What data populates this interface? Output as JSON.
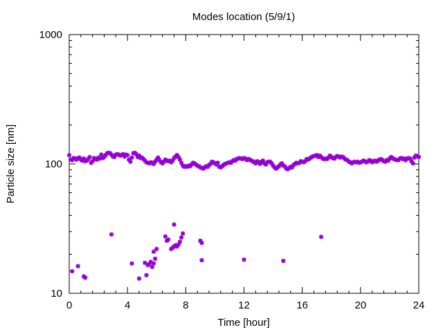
{
  "chart_data": {
    "type": "scatter",
    "title": "Modes location (5/9/1)",
    "xlabel": "Time [hour]",
    "ylabel": "Particle size [nm]",
    "xlim": [
      0,
      24
    ],
    "ylim": [
      10,
      1000
    ],
    "yscale": "log",
    "grid": false,
    "legend": "none",
    "marker_color": "#9400d3",
    "x_ticks": [
      0,
      4,
      8,
      12,
      16,
      20,
      24
    ],
    "x_tick_labels": [
      "0",
      "4",
      "8",
      "12",
      "16",
      "20",
      "24"
    ],
    "y_ticks": [
      10,
      100,
      1000
    ],
    "y_tick_labels": [
      "10",
      "100",
      "1000"
    ],
    "series": [
      {
        "values": [
          [
            0.0,
            117
          ],
          [
            0.1,
            108
          ],
          [
            0.2,
            107
          ],
          [
            0.3,
            111
          ],
          [
            0.4,
            110
          ],
          [
            0.5,
            108
          ],
          [
            0.6,
            111
          ],
          [
            0.7,
            112
          ],
          [
            0.8,
            108
          ],
          [
            0.9,
            106
          ],
          [
            1.0,
            110
          ],
          [
            1.1,
            105
          ],
          [
            1.2,
            106
          ],
          [
            1.3,
            109
          ],
          [
            1.4,
            113
          ],
          [
            1.5,
            102
          ],
          [
            1.6,
            105
          ],
          [
            1.7,
            111
          ],
          [
            1.8,
            109
          ],
          [
            1.9,
            108
          ],
          [
            2.0,
            112
          ],
          [
            2.1,
            110
          ],
          [
            2.2,
            118
          ],
          [
            2.3,
            111
          ],
          [
            2.4,
            113
          ],
          [
            2.5,
            117
          ],
          [
            2.6,
            121
          ],
          [
            2.7,
            122
          ],
          [
            2.8,
            121
          ],
          [
            2.9,
            118
          ],
          [
            3.0,
            114
          ],
          [
            3.1,
            113
          ],
          [
            3.2,
            118
          ],
          [
            3.3,
            119
          ],
          [
            3.4,
            118
          ],
          [
            3.5,
            116
          ],
          [
            3.6,
            117
          ],
          [
            3.7,
            119
          ],
          [
            3.8,
            114
          ],
          [
            3.9,
            118
          ],
          [
            4.0,
            117
          ],
          [
            4.1,
            108
          ],
          [
            4.2,
            104
          ],
          [
            4.3,
            112
          ],
          [
            4.4,
            121
          ],
          [
            4.5,
            122
          ],
          [
            4.6,
            119
          ],
          [
            4.7,
            113
          ],
          [
            4.8,
            116
          ],
          [
            4.9,
            111
          ],
          [
            5.0,
            112
          ],
          [
            5.1,
            109
          ],
          [
            5.2,
            106
          ],
          [
            5.3,
            103
          ],
          [
            5.4,
            102
          ],
          [
            5.5,
            101
          ],
          [
            5.6,
            103
          ],
          [
            5.7,
            102
          ],
          [
            5.8,
            100
          ],
          [
            5.9,
            104
          ],
          [
            6.0,
            108
          ],
          [
            6.1,
            112
          ],
          [
            6.2,
            107
          ],
          [
            6.3,
            103
          ],
          [
            6.4,
            101
          ],
          [
            6.5,
            104
          ],
          [
            6.6,
            108
          ],
          [
            6.7,
            106
          ],
          [
            6.8,
            105
          ],
          [
            6.9,
            106
          ],
          [
            7.0,
            103
          ],
          [
            7.1,
            106
          ],
          [
            7.2,
            111
          ],
          [
            7.3,
            114
          ],
          [
            7.4,
            117
          ],
          [
            7.5,
            113
          ],
          [
            7.6,
            108
          ],
          [
            7.7,
            102
          ],
          [
            7.8,
            97
          ],
          [
            7.9,
            95
          ],
          [
            8.0,
            96
          ],
          [
            8.1,
            95
          ],
          [
            8.2,
            97
          ],
          [
            8.3,
            96
          ],
          [
            8.4,
            99
          ],
          [
            8.5,
            102
          ],
          [
            8.6,
            101
          ],
          [
            8.7,
            99
          ],
          [
            8.8,
            97
          ],
          [
            8.9,
            96
          ],
          [
            9.0,
            94
          ],
          [
            9.1,
            93
          ],
          [
            9.2,
            92
          ],
          [
            9.3,
            94
          ],
          [
            9.4,
            96
          ],
          [
            9.5,
            95
          ],
          [
            9.6,
            98
          ],
          [
            9.7,
            100
          ],
          [
            9.8,
            104
          ],
          [
            9.9,
            103
          ],
          [
            10.0,
            101
          ],
          [
            10.1,
            99
          ],
          [
            10.2,
            102
          ],
          [
            10.3,
            95
          ],
          [
            10.4,
            94
          ],
          [
            10.5,
            96
          ],
          [
            10.6,
            98
          ],
          [
            10.7,
            100
          ],
          [
            10.8,
            101
          ],
          [
            10.9,
            102
          ],
          [
            11.0,
            103
          ],
          [
            11.1,
            102
          ],
          [
            11.2,
            105
          ],
          [
            11.3,
            107
          ],
          [
            11.4,
            106
          ],
          [
            11.5,
            109
          ],
          [
            11.6,
            110
          ],
          [
            11.7,
            111
          ],
          [
            11.8,
            110
          ],
          [
            11.9,
            109
          ],
          [
            12.0,
            111
          ],
          [
            12.1,
            110
          ],
          [
            12.2,
            107
          ],
          [
            12.3,
            109
          ],
          [
            12.4,
            108
          ],
          [
            12.5,
            106
          ],
          [
            12.6,
            105
          ],
          [
            12.7,
            103
          ],
          [
            12.8,
            101
          ],
          [
            12.9,
            105
          ],
          [
            13.0,
            103
          ],
          [
            13.1,
            100
          ],
          [
            13.2,
            104
          ],
          [
            13.3,
            106
          ],
          [
            13.4,
            101
          ],
          [
            13.5,
            99
          ],
          [
            13.6,
            103
          ],
          [
            13.7,
            104
          ],
          [
            13.8,
            104
          ],
          [
            13.9,
            101
          ],
          [
            14.0,
            97
          ],
          [
            14.1,
            94
          ],
          [
            14.2,
            92
          ],
          [
            14.3,
            94
          ],
          [
            14.4,
            96
          ],
          [
            14.5,
            99
          ],
          [
            14.6,
            101
          ],
          [
            14.7,
            97
          ],
          [
            14.8,
            96
          ],
          [
            14.9,
            92
          ],
          [
            15.0,
            91
          ],
          [
            15.1,
            93
          ],
          [
            15.2,
            95
          ],
          [
            15.3,
            94
          ],
          [
            15.4,
            98
          ],
          [
            15.5,
            100
          ],
          [
            15.6,
            102
          ],
          [
            15.7,
            101
          ],
          [
            15.8,
            102
          ],
          [
            15.9,
            105
          ],
          [
            16.0,
            104
          ],
          [
            16.1,
            103
          ],
          [
            16.2,
            105
          ],
          [
            16.3,
            109
          ],
          [
            16.4,
            108
          ],
          [
            16.5,
            110
          ],
          [
            16.6,
            112
          ],
          [
            16.7,
            114
          ],
          [
            16.8,
            115
          ],
          [
            16.9,
            116
          ],
          [
            17.0,
            117
          ],
          [
            17.1,
            113
          ],
          [
            17.2,
            116
          ],
          [
            17.3,
            113
          ],
          [
            17.4,
            110
          ],
          [
            17.5,
            109
          ],
          [
            17.6,
            110
          ],
          [
            17.7,
            109
          ],
          [
            17.8,
            112
          ],
          [
            17.9,
            116
          ],
          [
            18.0,
            113
          ],
          [
            18.1,
            111
          ],
          [
            18.2,
            110
          ],
          [
            18.3,
            113
          ],
          [
            18.4,
            115
          ],
          [
            18.5,
            114
          ],
          [
            18.6,
            112
          ],
          [
            18.7,
            114
          ],
          [
            18.8,
            113
          ],
          [
            18.9,
            110
          ],
          [
            19.0,
            108
          ],
          [
            19.1,
            107
          ],
          [
            19.2,
            104
          ],
          [
            19.3,
            103
          ],
          [
            19.4,
            101
          ],
          [
            19.5,
            103
          ],
          [
            19.6,
            104
          ],
          [
            19.7,
            103
          ],
          [
            19.8,
            104
          ],
          [
            19.9,
            102
          ],
          [
            20.0,
            103
          ],
          [
            20.1,
            104
          ],
          [
            20.2,
            106
          ],
          [
            20.3,
            105
          ],
          [
            20.4,
            103
          ],
          [
            20.5,
            104
          ],
          [
            20.6,
            107
          ],
          [
            20.7,
            106
          ],
          [
            20.8,
            103
          ],
          [
            20.9,
            105
          ],
          [
            21.0,
            106
          ],
          [
            21.1,
            104
          ],
          [
            21.2,
            106
          ],
          [
            21.3,
            108
          ],
          [
            21.4,
            109
          ],
          [
            21.5,
            107
          ],
          [
            21.6,
            105
          ],
          [
            21.7,
            104
          ],
          [
            21.8,
            107
          ],
          [
            21.9,
            106
          ],
          [
            22.0,
            110
          ],
          [
            22.1,
            113
          ],
          [
            22.2,
            111
          ],
          [
            22.3,
            109
          ],
          [
            22.4,
            108
          ],
          [
            22.5,
            107
          ],
          [
            22.6,
            107
          ],
          [
            22.7,
            110
          ],
          [
            22.8,
            111
          ],
          [
            22.9,
            109
          ],
          [
            23.0,
            110
          ],
          [
            23.1,
            107
          ],
          [
            23.2,
            110
          ],
          [
            23.3,
            111
          ],
          [
            23.4,
            110
          ],
          [
            23.5,
            105
          ],
          [
            23.6,
            101
          ],
          [
            23.7,
            112
          ],
          [
            23.8,
            116
          ],
          [
            23.9,
            115
          ],
          [
            24.0,
            113
          ],
          [
            0.2,
            14.8
          ],
          [
            0.6,
            16.2
          ],
          [
            1.0,
            13.5
          ],
          [
            1.1,
            13.2
          ],
          [
            2.9,
            28.5
          ],
          [
            4.3,
            17.0
          ],
          [
            4.8,
            13.0
          ],
          [
            5.2,
            17.2
          ],
          [
            5.3,
            13.8
          ],
          [
            5.4,
            16.5
          ],
          [
            5.5,
            16.8
          ],
          [
            5.6,
            17.5
          ],
          [
            5.7,
            16.0
          ],
          [
            5.8,
            17.0
          ],
          [
            5.8,
            21.0
          ],
          [
            5.9,
            18.5
          ],
          [
            6.0,
            22.0
          ],
          [
            6.6,
            27.5
          ],
          [
            6.7,
            25.5
          ],
          [
            6.8,
            26.0
          ],
          [
            7.0,
            22.0
          ],
          [
            7.1,
            22.5
          ],
          [
            7.2,
            23.0
          ],
          [
            7.2,
            34.0
          ],
          [
            7.3,
            23.5
          ],
          [
            7.4,
            23.0
          ],
          [
            7.5,
            23.8
          ],
          [
            7.6,
            25.0
          ],
          [
            7.7,
            27.0
          ],
          [
            7.8,
            29.0
          ],
          [
            9.0,
            25.5
          ],
          [
            9.1,
            24.5
          ],
          [
            9.1,
            18.0
          ],
          [
            12.0,
            18.2
          ],
          [
            14.7,
            17.8
          ],
          [
            17.3,
            27.3
          ]
        ]
      }
    ]
  }
}
